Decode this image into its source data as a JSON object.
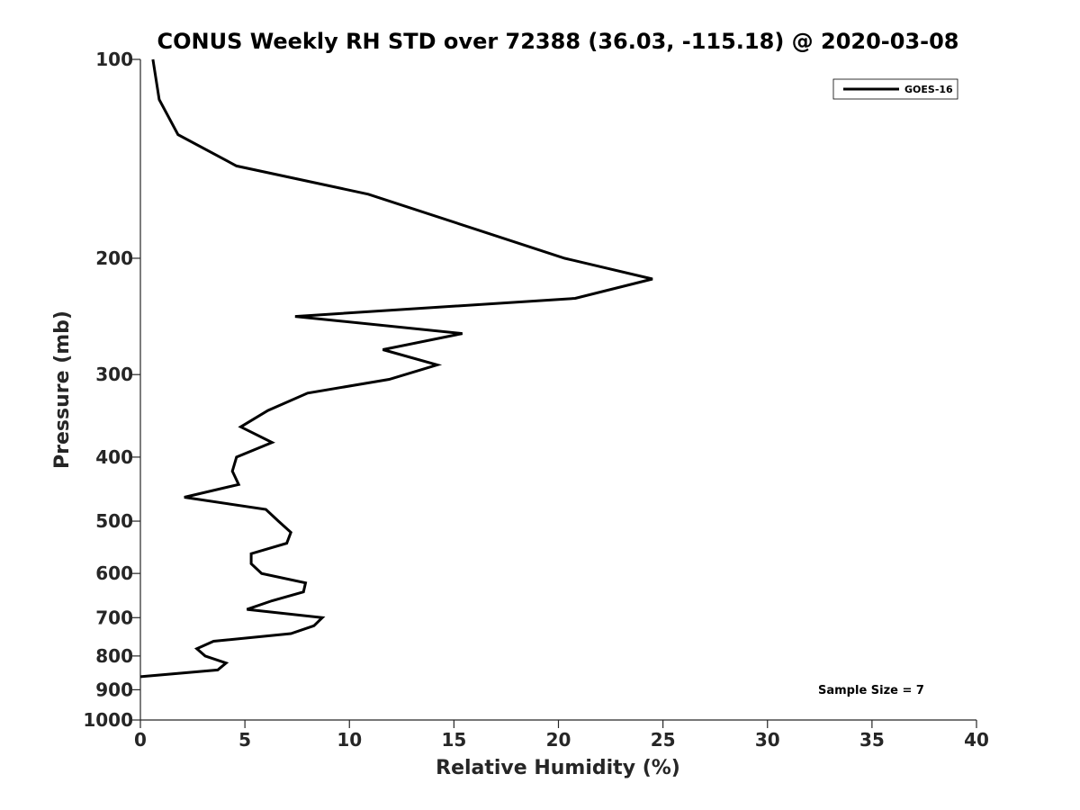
{
  "chart_data": {
    "type": "line",
    "title": "CONUS Weekly RH STD over 72388 (36.03, -115.18) @ 2020-03-08",
    "xlabel": "Relative Humidity (%)",
    "ylabel": "Pressure (mb)",
    "xlim": [
      0,
      40
    ],
    "ylim": [
      100,
      1000
    ],
    "y_scale": "log",
    "y_reversed": true,
    "grid": false,
    "legend_position": "top-right",
    "xticks": [
      0,
      5,
      10,
      15,
      20,
      25,
      30,
      35,
      40
    ],
    "xtick_labels": [
      "0",
      "5",
      "10",
      "15",
      "20",
      "25",
      "30",
      "35",
      "40"
    ],
    "yticks": [
      100,
      200,
      300,
      400,
      500,
      600,
      700,
      800,
      900,
      1000
    ],
    "ytick_labels": [
      "100",
      "200",
      "300",
      "400",
      "500",
      "600",
      "700",
      "800",
      "900",
      "1000"
    ],
    "series": [
      {
        "name": "GOES-16",
        "color": "#000000",
        "x": [
          0.6,
          0.9,
          1.8,
          4.6,
          10.9,
          20.3,
          24.5,
          20.8,
          7.4,
          15.4,
          11.6,
          14.2,
          11.9,
          8.0,
          6.1,
          4.8,
          6.3,
          4.6,
          4.4,
          4.7,
          2.1,
          6.0,
          6.6,
          7.2,
          7.0,
          5.3,
          5.3,
          5.8,
          7.9,
          7.8,
          6.3,
          5.1,
          8.7,
          8.3,
          7.2,
          3.5,
          2.7,
          3.1,
          4.1,
          3.7,
          0.0
        ],
        "y": [
          100,
          115,
          130,
          145,
          160,
          200,
          215,
          230,
          245,
          260,
          275,
          290,
          305,
          320,
          340,
          360,
          380,
          400,
          420,
          440,
          460,
          480,
          500,
          520,
          540,
          560,
          580,
          600,
          620,
          640,
          660,
          680,
          700,
          720,
          740,
          760,
          780,
          800,
          820,
          840,
          860
        ]
      }
    ],
    "annotations": [
      "Sample Size = 7"
    ]
  }
}
